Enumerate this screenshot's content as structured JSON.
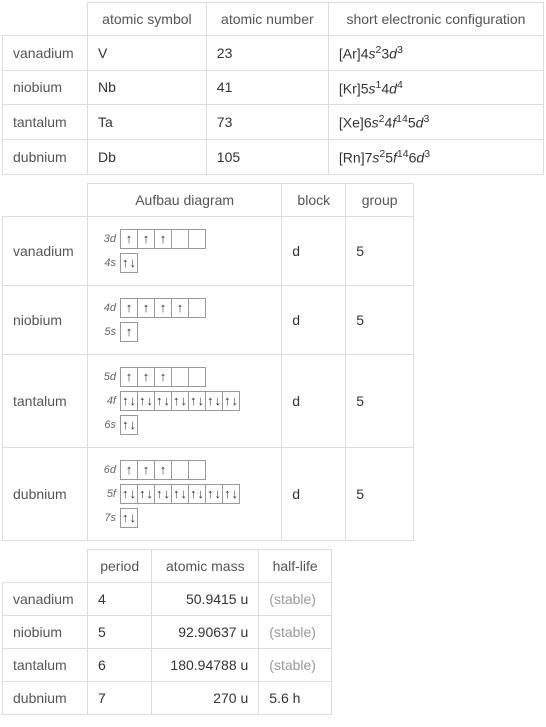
{
  "table1": {
    "headers": [
      "atomic symbol",
      "atomic number",
      "short electronic configuration"
    ],
    "rows": [
      {
        "element": "vanadium",
        "symbol": "V",
        "number": "23",
        "config_prefix": "[Ar]4",
        "config_parts": [
          "s",
          "2",
          "3",
          "d",
          "3"
        ]
      },
      {
        "element": "niobium",
        "symbol": "Nb",
        "number": "41",
        "config_prefix": "[Kr]5",
        "config_parts": [
          "s",
          "1",
          "4",
          "d",
          "4"
        ]
      },
      {
        "element": "tantalum",
        "symbol": "Ta",
        "number": "73",
        "config_prefix": "[Xe]6",
        "config_parts": [
          "s",
          "2",
          "4",
          "f",
          "14",
          "5",
          "d",
          "3"
        ]
      },
      {
        "element": "dubnium",
        "symbol": "Db",
        "number": "105",
        "config_prefix": "[Rn]7",
        "config_parts": [
          "s",
          "2",
          "5",
          "f",
          "14",
          "6",
          "d",
          "3"
        ]
      }
    ]
  },
  "table2": {
    "headers": [
      "Aufbau diagram",
      "block",
      "group"
    ],
    "rows": [
      {
        "element": "vanadium",
        "block": "d",
        "group": "5",
        "orbitals": [
          {
            "label": "3d",
            "boxes": [
              {
                "e": "u"
              },
              {
                "e": "u"
              },
              {
                "e": "u"
              },
              {
                "e": ""
              },
              {
                "e": ""
              }
            ]
          },
          {
            "label": "4s",
            "boxes": [
              {
                "e": "ud"
              }
            ]
          }
        ]
      },
      {
        "element": "niobium",
        "block": "d",
        "group": "5",
        "orbitals": [
          {
            "label": "4d",
            "boxes": [
              {
                "e": "u"
              },
              {
                "e": "u"
              },
              {
                "e": "u"
              },
              {
                "e": "u"
              },
              {
                "e": ""
              }
            ]
          },
          {
            "label": "5s",
            "boxes": [
              {
                "e": "u"
              }
            ]
          }
        ]
      },
      {
        "element": "tantalum",
        "block": "d",
        "group": "5",
        "orbitals": [
          {
            "label": "5d",
            "boxes": [
              {
                "e": "u"
              },
              {
                "e": "u"
              },
              {
                "e": "u"
              },
              {
                "e": ""
              },
              {
                "e": ""
              }
            ]
          },
          {
            "label": "4f",
            "boxes": [
              {
                "e": "ud"
              },
              {
                "e": "ud"
              },
              {
                "e": "ud"
              },
              {
                "e": "ud"
              },
              {
                "e": "ud"
              },
              {
                "e": "ud"
              },
              {
                "e": "ud"
              }
            ]
          },
          {
            "label": "6s",
            "boxes": [
              {
                "e": "ud"
              }
            ]
          }
        ]
      },
      {
        "element": "dubnium",
        "block": "d",
        "group": "5",
        "orbitals": [
          {
            "label": "6d",
            "boxes": [
              {
                "e": "u"
              },
              {
                "e": "u"
              },
              {
                "e": "u"
              },
              {
                "e": ""
              },
              {
                "e": ""
              }
            ]
          },
          {
            "label": "5f",
            "boxes": [
              {
                "e": "ud"
              },
              {
                "e": "ud"
              },
              {
                "e": "ud"
              },
              {
                "e": "ud"
              },
              {
                "e": "ud"
              },
              {
                "e": "ud"
              },
              {
                "e": "ud"
              }
            ]
          },
          {
            "label": "7s",
            "boxes": [
              {
                "e": "ud"
              }
            ]
          }
        ]
      }
    ]
  },
  "table3": {
    "headers": [
      "period",
      "atomic mass",
      "half-life"
    ],
    "rows": [
      {
        "element": "vanadium",
        "period": "4",
        "mass": "50.9415 u",
        "halflife": "(stable)",
        "stable": true
      },
      {
        "element": "niobium",
        "period": "5",
        "mass": "92.90637 u",
        "halflife": "(stable)",
        "stable": true
      },
      {
        "element": "tantalum",
        "period": "6",
        "mass": "180.94788 u",
        "halflife": "(stable)",
        "stable": true
      },
      {
        "element": "dubnium",
        "period": "7",
        "mass": "270 u",
        "halflife": "5.6 h",
        "stable": false
      }
    ]
  },
  "colors": {
    "border": "#ddd",
    "text": "#333",
    "header_text": "#555",
    "muted": "#999",
    "box_border": "#999"
  }
}
